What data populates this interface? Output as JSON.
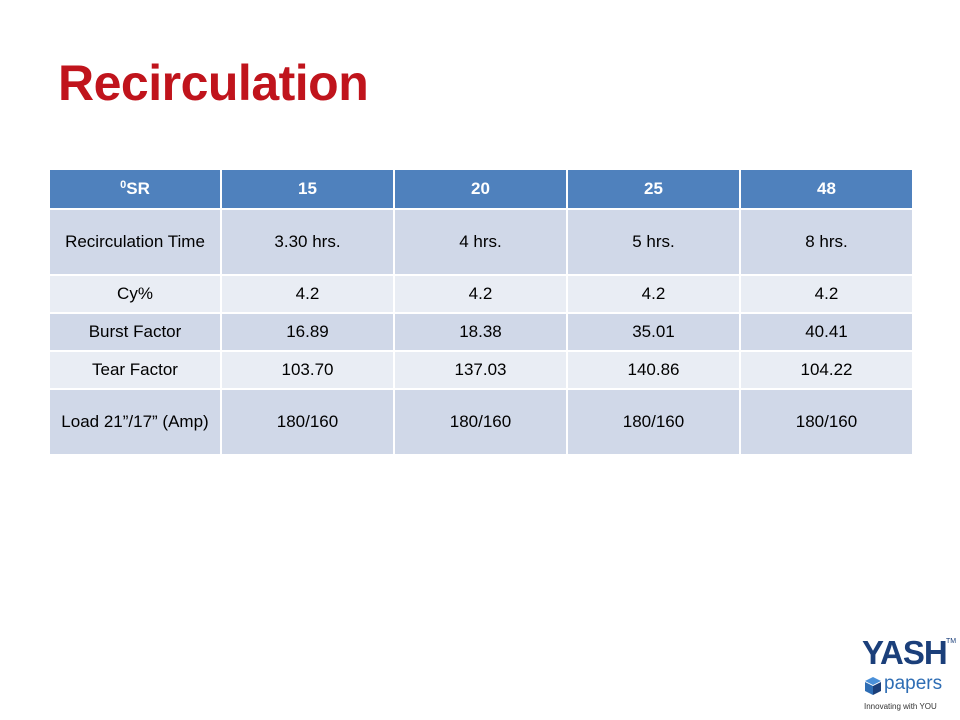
{
  "slide": {
    "title": "Recirculation"
  },
  "table": {
    "header": {
      "sr_degree": "0",
      "sr_unit": "SR",
      "columns": [
        "15",
        "20",
        "25",
        "48"
      ]
    },
    "rows": [
      {
        "label": "Recirculation Time",
        "values": [
          "3.30 hrs.",
          "4 hrs.",
          "5 hrs.",
          "8 hrs."
        ]
      },
      {
        "label": "Cy%",
        "values": [
          "4.2",
          "4.2",
          "4.2",
          "4.2"
        ]
      },
      {
        "label": "Burst Factor",
        "values": [
          "16.89",
          "18.38",
          "35.01",
          "40.41"
        ]
      },
      {
        "label": "Tear Factor",
        "values": [
          "103.70",
          "137.03",
          "140.86",
          "104.22"
        ]
      },
      {
        "label": "Load 21”/17” (Amp)",
        "values": [
          "180/160",
          "180/160",
          "180/160",
          "180/160"
        ]
      }
    ]
  },
  "logo": {
    "brand": "YASH",
    "trademark": "TM",
    "product": "papers",
    "tagline": "Innovating with YOU"
  },
  "colors": {
    "title": "#C0141C",
    "header_bg": "#4F81BD",
    "band_dark": "#D0D8E8",
    "band_light": "#E9EDF4",
    "logo_navy": "#1B3F7A",
    "logo_blue": "#2E6DB4"
  }
}
